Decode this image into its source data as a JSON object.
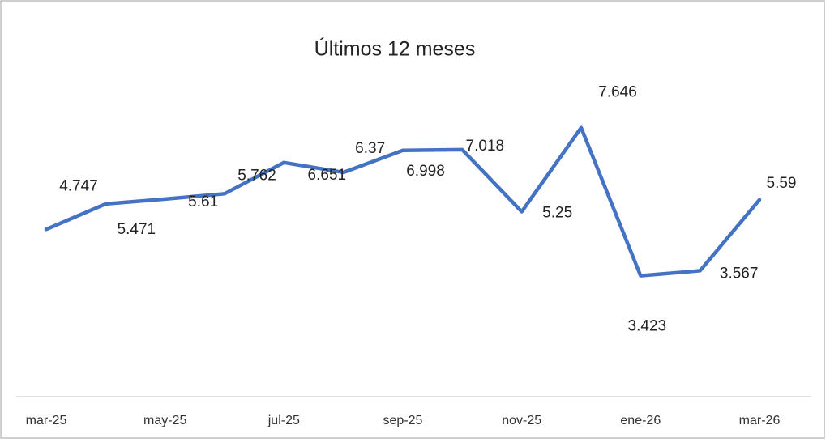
{
  "chart_data": {
    "type": "line",
    "title": "Últimos 12 meses",
    "categories": [
      "mar-25",
      null,
      "may-25",
      null,
      "jul-25",
      null,
      "sep-25",
      null,
      "nov-25",
      null,
      "ene-26",
      null,
      "mar-26"
    ],
    "series": [
      {
        "color": "#4472c4",
        "values": [
          4.747,
          5.471,
          5.61,
          5.762,
          6.651,
          6.37,
          6.998,
          7.018,
          5.25,
          7.646,
          3.423,
          3.567,
          5.59
        ]
      }
    ],
    "ylim": [
      0,
      9
    ]
  }
}
